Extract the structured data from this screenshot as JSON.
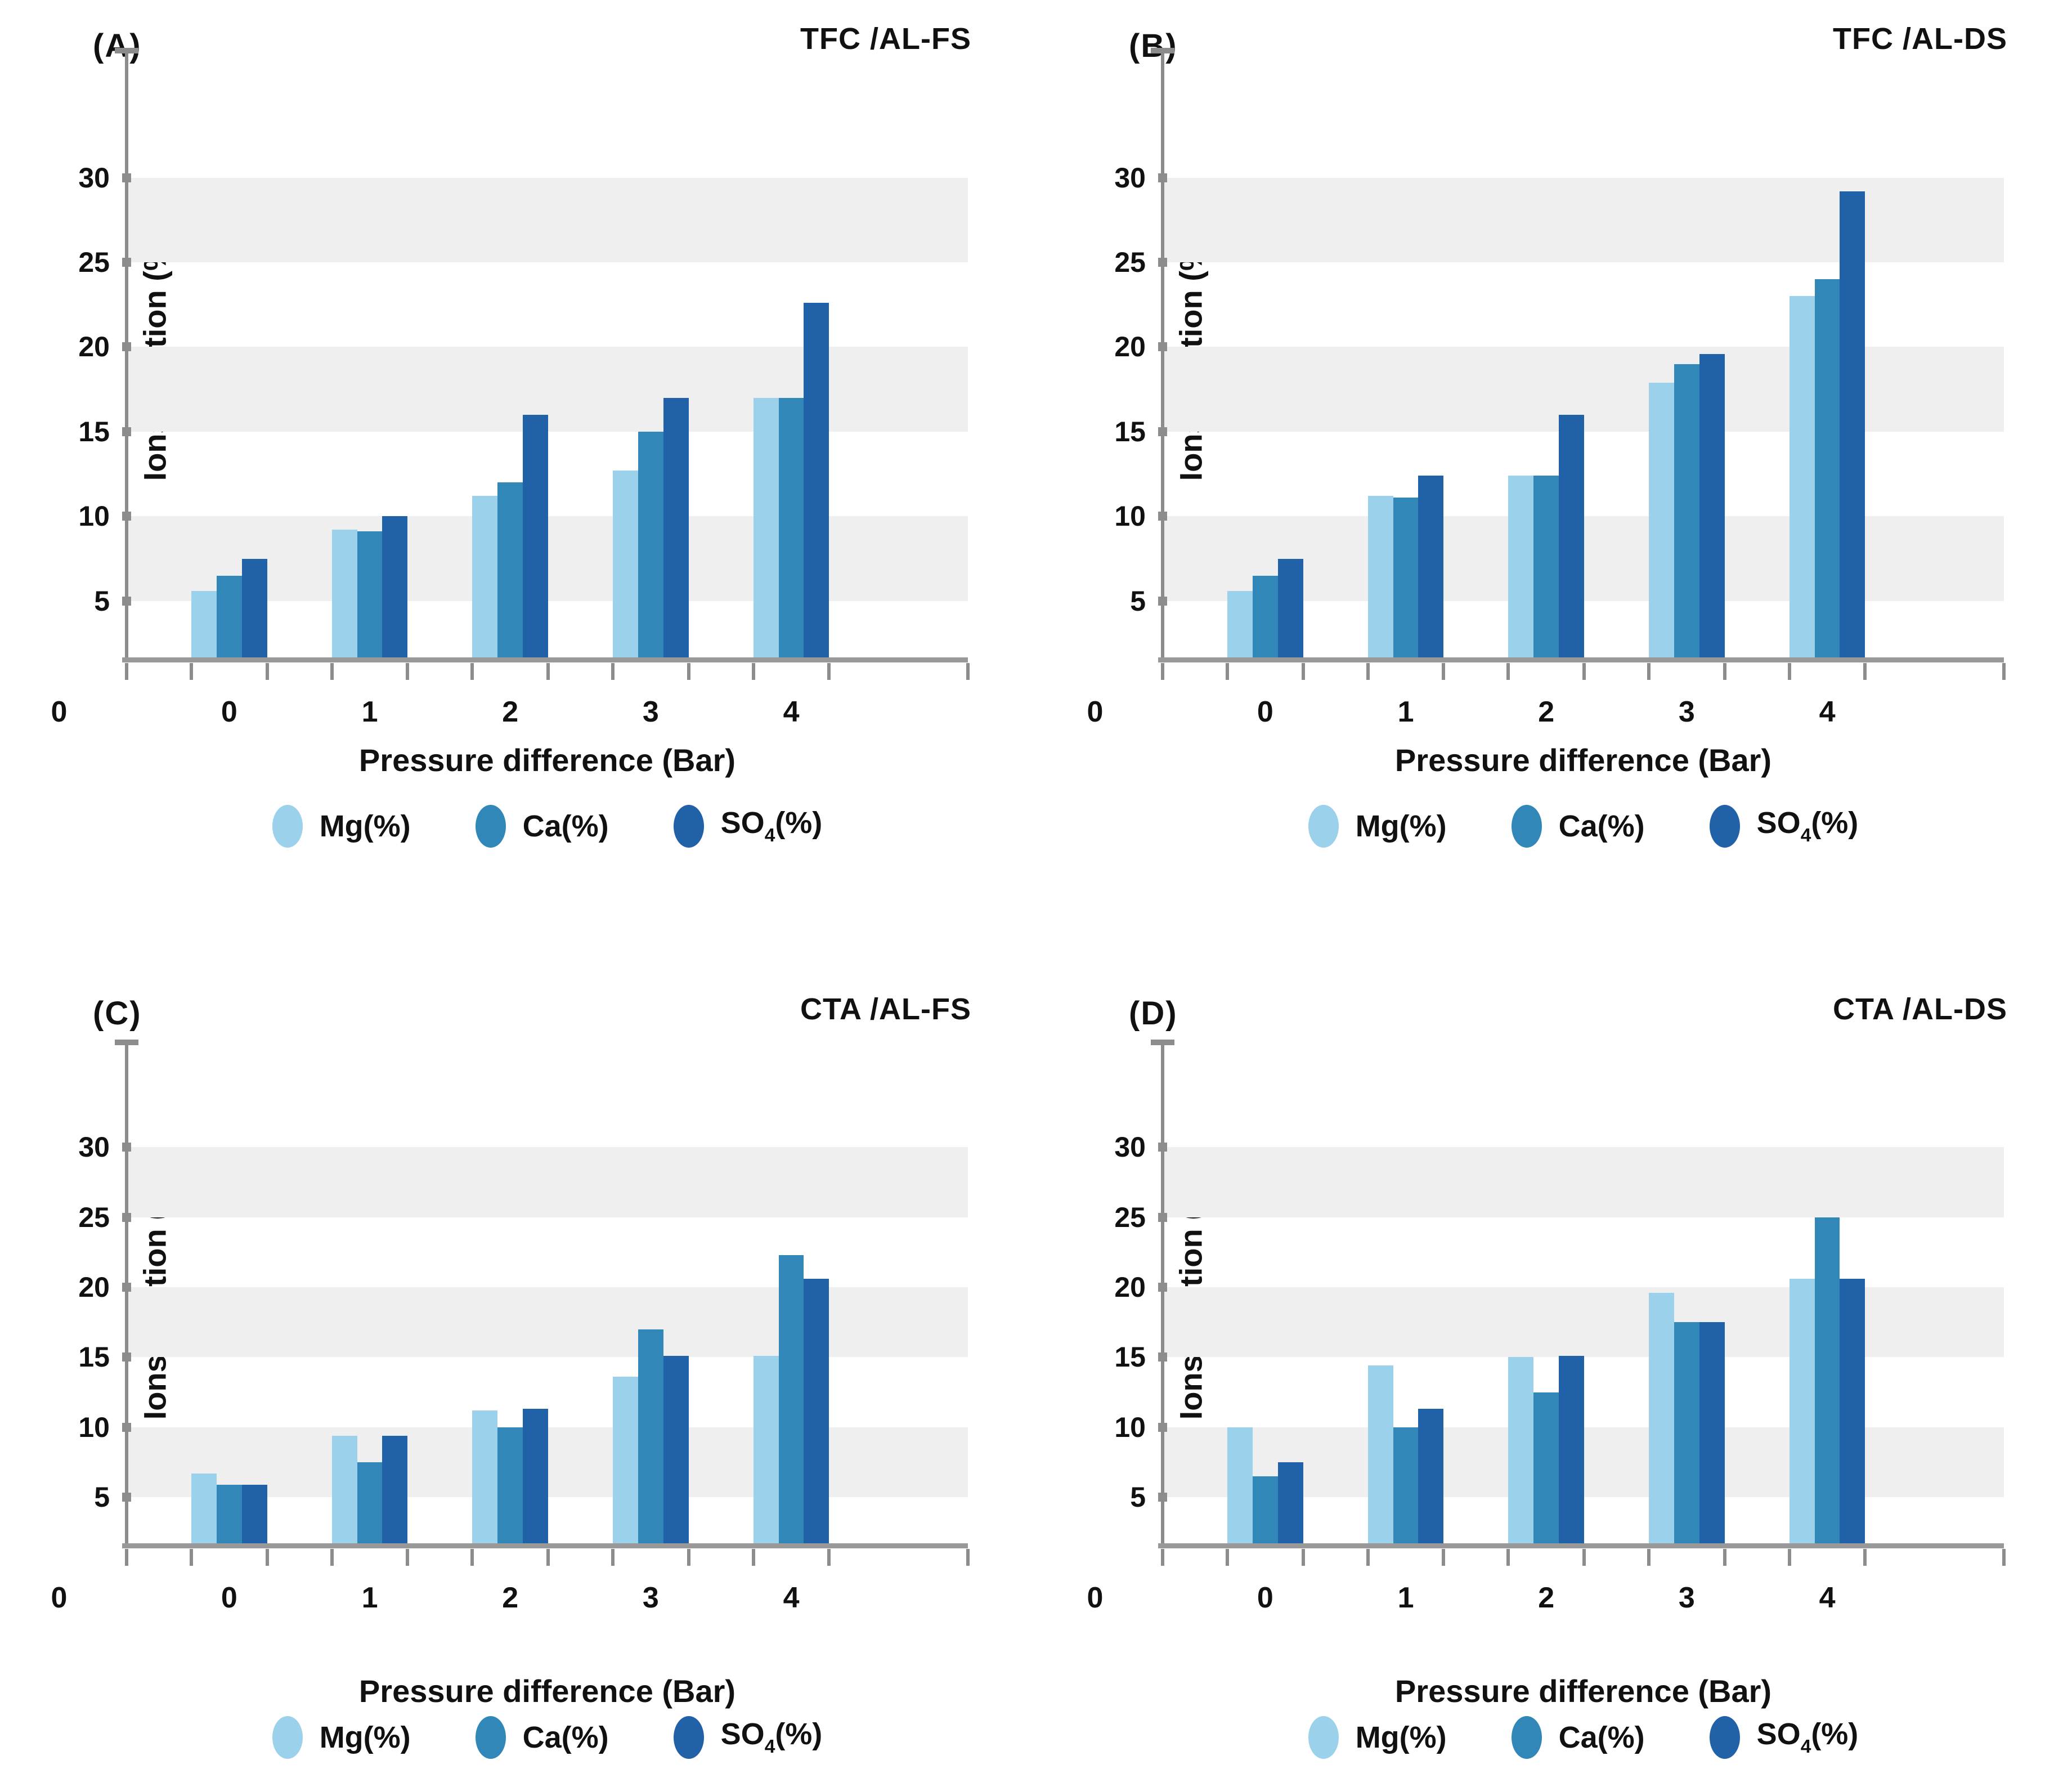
{
  "figure": {
    "origin_label": "0",
    "axis_color": "#8c8c8c",
    "band_color": "#efefef",
    "series_colors": [
      "#9cd1ec",
      "#3187b8",
      "#2161a8"
    ]
  },
  "chart_data": [
    {
      "type": "bar",
      "panel_label": "(A)",
      "title": "TFC /AL-FS",
      "xlabel": "Pressure difference (Bar)",
      "ylabel": "Ions Dilution (%)",
      "origin_label": "0",
      "categories": [
        "0",
        "1",
        "2",
        "3",
        "4"
      ],
      "yticks": [
        5,
        10,
        15,
        20,
        25,
        30
      ],
      "ylim_display": [
        1.5,
        37.5
      ],
      "gridbands": [
        [
          5,
          10
        ],
        [
          15,
          20
        ],
        [
          25,
          30
        ]
      ],
      "grid": "banded",
      "legend_position": "bottom",
      "series": [
        {
          "name": "Mg(%)",
          "color": "#9cd1ec",
          "values": [
            5.6,
            9.2,
            11.2,
            12.7,
            17.0
          ]
        },
        {
          "name": "Ca(%)",
          "color": "#3187b8",
          "values": [
            6.5,
            9.1,
            12.0,
            15.0,
            17.0
          ]
        },
        {
          "name": "SO4(%)",
          "name_parts": {
            "base": "SO",
            "sub": "4",
            "rest": "(%)"
          },
          "color": "#2161a8",
          "values": [
            7.5,
            10.0,
            16.0,
            17.0,
            22.6
          ]
        }
      ]
    },
    {
      "type": "bar",
      "panel_label": "(B)",
      "title": "TFC /AL-DS",
      "xlabel": "Pressure difference (Bar)",
      "ylabel": "Ions Dilution (%)",
      "origin_label": "0",
      "categories": [
        "0",
        "1",
        "2",
        "3",
        "4"
      ],
      "yticks": [
        5,
        10,
        15,
        20,
        25,
        30
      ],
      "ylim_display": [
        1.5,
        37.5
      ],
      "gridbands": [
        [
          5,
          10
        ],
        [
          15,
          20
        ],
        [
          25,
          30
        ]
      ],
      "grid": "banded",
      "legend_position": "bottom",
      "series": [
        {
          "name": "Mg(%)",
          "color": "#9cd1ec",
          "values": [
            5.6,
            11.2,
            12.4,
            17.9,
            23.0
          ]
        },
        {
          "name": "Ca(%)",
          "color": "#3187b8",
          "values": [
            6.5,
            11.1,
            12.4,
            19.0,
            24.0
          ]
        },
        {
          "name": "SO4(%)",
          "name_parts": {
            "base": "SO",
            "sub": "4",
            "rest": "(%)"
          },
          "color": "#2161a8",
          "values": [
            7.5,
            12.4,
            16.0,
            19.6,
            29.2
          ]
        }
      ]
    },
    {
      "type": "bar",
      "panel_label": "(C)",
      "title": "CTA /AL-FS",
      "xlabel": "Pressure difference (Bar)",
      "ylabel": "Ions Dilution (%)",
      "origin_label": "0",
      "categories": [
        "0",
        "1",
        "2",
        "3",
        "4"
      ],
      "yticks": [
        5,
        10,
        15,
        20,
        25,
        30
      ],
      "ylim_display": [
        1.5,
        37.5
      ],
      "gridbands": [
        [
          5,
          10
        ],
        [
          15,
          20
        ],
        [
          25,
          30
        ]
      ],
      "grid": "banded",
      "legend_position": "bottom",
      "series": [
        {
          "name": "Mg(%)",
          "color": "#9cd1ec",
          "values": [
            6.7,
            9.4,
            11.2,
            13.6,
            15.1
          ]
        },
        {
          "name": "Ca(%)",
          "color": "#3187b8",
          "values": [
            5.9,
            7.5,
            10.0,
            17.0,
            22.3
          ]
        },
        {
          "name": "SO4(%)",
          "name_parts": {
            "base": "SO",
            "sub": "4",
            "rest": "(%)"
          },
          "color": "#2161a8",
          "values": [
            5.9,
            9.4,
            11.3,
            15.1,
            20.6
          ]
        }
      ]
    },
    {
      "type": "bar",
      "panel_label": "(D)",
      "title": "CTA /AL-DS",
      "xlabel": "Pressure difference (Bar)",
      "ylabel": "Ions Dilution (%)",
      "origin_label": "0",
      "categories": [
        "0",
        "1",
        "2",
        "3",
        "4"
      ],
      "yticks": [
        5,
        10,
        15,
        20,
        25,
        30
      ],
      "ylim_display": [
        1.5,
        37.5
      ],
      "gridbands": [
        [
          5,
          10
        ],
        [
          15,
          20
        ],
        [
          25,
          30
        ]
      ],
      "grid": "banded",
      "legend_position": "bottom",
      "series": [
        {
          "name": "Mg(%)",
          "color": "#9cd1ec",
          "values": [
            10.0,
            14.4,
            15.0,
            19.6,
            20.6
          ]
        },
        {
          "name": "Ca(%)",
          "color": "#3187b8",
          "values": [
            6.5,
            10.0,
            12.5,
            17.5,
            25.0
          ]
        },
        {
          "name": "SO4(%)",
          "name_parts": {
            "base": "SO",
            "sub": "4",
            "rest": "(%)"
          },
          "color": "#2161a8",
          "values": [
            7.5,
            11.3,
            15.1,
            17.5,
            20.6
          ]
        }
      ]
    }
  ]
}
